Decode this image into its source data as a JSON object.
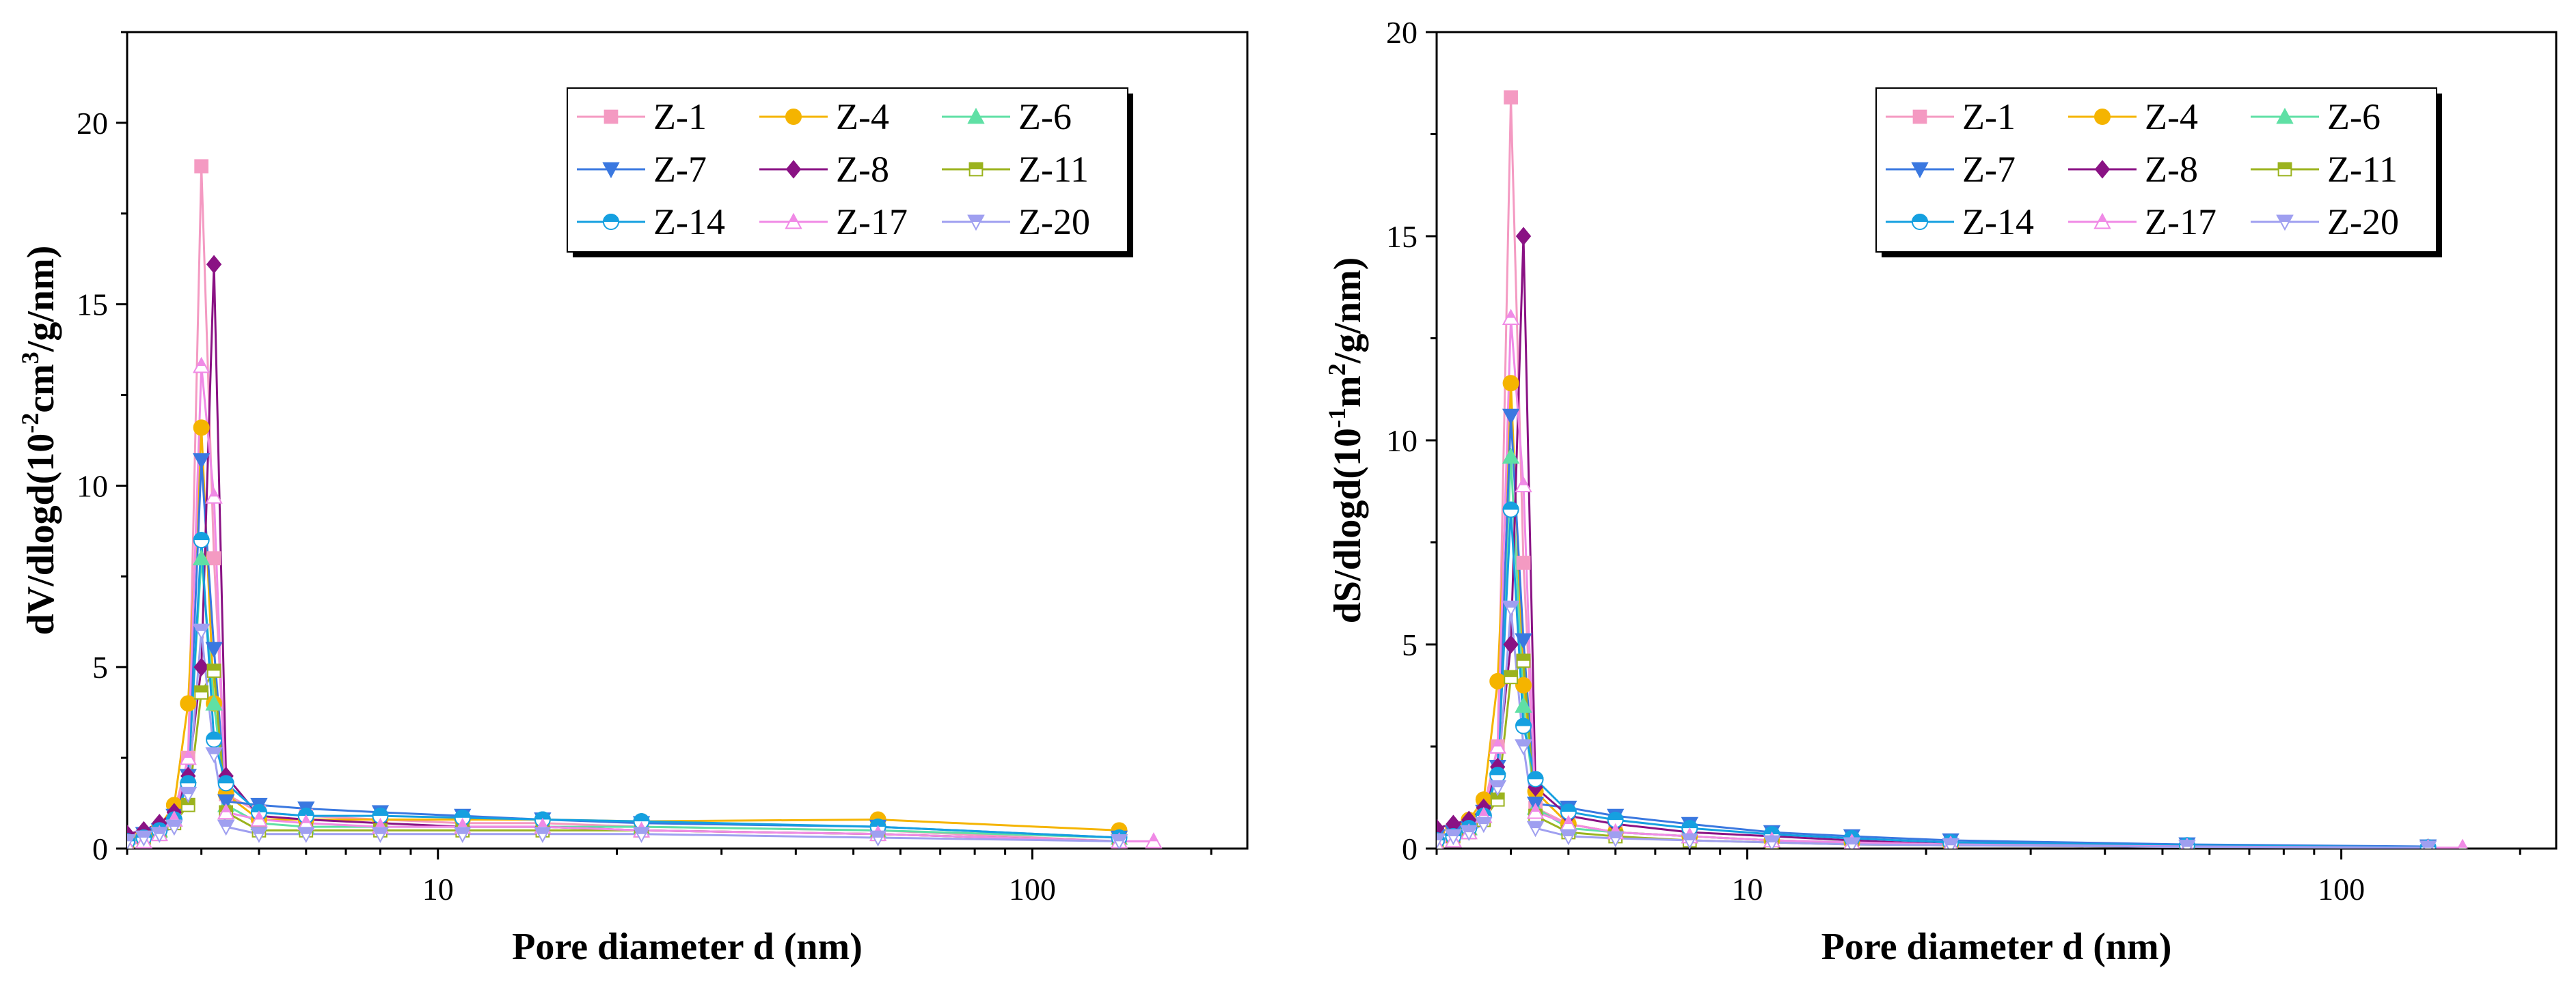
{
  "chart_data": [
    {
      "id": "left",
      "type": "line",
      "x_scale": "log",
      "xlabel": "Pore diameter d (nm)",
      "ylabel": {
        "base": "dV/dlogd(10",
        "sup1": "-2",
        "mid": "cm",
        "sup2": "3",
        "tail": "/g/nm)"
      },
      "xlim": [
        3.0,
        230
      ],
      "ylim": [
        0,
        22.5
      ],
      "xticks": [
        {
          "value": 10,
          "label": "10"
        },
        {
          "value": 100,
          "label": "100"
        }
      ],
      "yticks": [
        {
          "value": 0,
          "label": "0"
        },
        {
          "value": 5,
          "label": "5"
        },
        {
          "value": 10,
          "label": "10"
        },
        {
          "value": 15,
          "label": "15"
        },
        {
          "value": 20,
          "label": "20"
        }
      ],
      "legend_position": "top-right",
      "series": [
        {
          "name": "Z-1",
          "color": "#f49ac2",
          "marker": "square",
          "x": [
            3.0,
            3.2,
            3.4,
            3.6,
            3.8,
            4.0,
            4.2,
            4.4,
            5,
            6,
            8,
            11,
            15,
            22,
            55,
            140
          ],
          "y": [
            0.1,
            0.3,
            0.5,
            1.0,
            2.5,
            18.8,
            8.0,
            1.5,
            1.0,
            0.9,
            0.8,
            0.7,
            0.7,
            0.6,
            0.5,
            0.2
          ]
        },
        {
          "name": "Z-4",
          "color": "#f5b400",
          "marker": "circle",
          "x": [
            3.0,
            3.2,
            3.4,
            3.6,
            3.8,
            4.0,
            4.2,
            4.4,
            5,
            6,
            8,
            11,
            15,
            22,
            55,
            140
          ],
          "y": [
            0.3,
            0.4,
            0.6,
            1.2,
            4.0,
            11.6,
            4.0,
            1.5,
            0.8,
            0.8,
            0.8,
            0.8,
            0.8,
            0.75,
            0.8,
            0.5
          ]
        },
        {
          "name": "Z-6",
          "color": "#5fe0a5",
          "marker": "triangle-up",
          "x": [
            3.0,
            3.2,
            3.4,
            3.6,
            3.8,
            4.0,
            4.2,
            4.4,
            5,
            6,
            8,
            11,
            15,
            22,
            55,
            140
          ],
          "y": [
            0.3,
            0.4,
            0.5,
            0.8,
            2.0,
            8.0,
            4.0,
            1.2,
            0.7,
            0.6,
            0.6,
            0.6,
            0.6,
            0.6,
            0.5,
            0.3
          ]
        },
        {
          "name": "Z-7",
          "color": "#3a78e0",
          "marker": "triangle-down",
          "x": [
            3.0,
            3.2,
            3.4,
            3.6,
            3.8,
            4.0,
            4.2,
            4.4,
            5,
            6,
            8,
            11,
            15,
            22,
            55,
            140
          ],
          "y": [
            0.2,
            0.4,
            0.5,
            0.9,
            2.0,
            10.7,
            5.5,
            1.3,
            1.2,
            1.1,
            1.0,
            0.9,
            0.8,
            0.7,
            0.6,
            0.3
          ]
        },
        {
          "name": "Z-8",
          "color": "#8a1284",
          "marker": "diamond",
          "x": [
            3.0,
            3.2,
            3.4,
            3.6,
            3.8,
            4.0,
            4.2,
            4.4,
            5,
            6,
            8,
            11,
            15,
            22,
            55,
            140
          ],
          "y": [
            0.4,
            0.5,
            0.7,
            1.0,
            2.0,
            5.0,
            16.1,
            2.0,
            0.9,
            0.8,
            0.7,
            0.6,
            0.6,
            0.5,
            0.4,
            0.2
          ]
        },
        {
          "name": "Z-11",
          "color": "#9bb31e",
          "marker": "square-half",
          "x": [
            3.0,
            3.2,
            3.4,
            3.6,
            3.8,
            4.0,
            4.2,
            4.4,
            5,
            6,
            8,
            11,
            15,
            22,
            55,
            140
          ],
          "y": [
            0.2,
            0.3,
            0.4,
            0.7,
            1.2,
            4.3,
            4.9,
            1.0,
            0.5,
            0.5,
            0.5,
            0.5,
            0.5,
            0.5,
            0.4,
            0.2
          ]
        },
        {
          "name": "Z-14",
          "color": "#15a0e0",
          "marker": "circle-half",
          "x": [
            3.0,
            3.2,
            3.4,
            3.6,
            3.8,
            4.0,
            4.2,
            4.4,
            5,
            6,
            8,
            11,
            15,
            22,
            55,
            140
          ],
          "y": [
            0.2,
            0.3,
            0.5,
            0.8,
            1.8,
            8.5,
            3.0,
            1.8,
            1.0,
            0.9,
            0.9,
            0.85,
            0.8,
            0.75,
            0.6,
            0.3
          ]
        },
        {
          "name": "Z-17",
          "color": "#f08ae6",
          "marker": "triangle-up-half",
          "x": [
            3.0,
            3.2,
            3.4,
            3.6,
            3.8,
            4.0,
            4.2,
            4.4,
            5,
            6,
            8,
            11,
            15,
            22,
            55,
            140,
            160
          ],
          "y": [
            0.1,
            0.2,
            0.4,
            0.8,
            2.5,
            13.3,
            9.7,
            1.0,
            0.8,
            0.7,
            0.6,
            0.6,
            0.6,
            0.5,
            0.4,
            0.2,
            0.2
          ]
        },
        {
          "name": "Z-20",
          "color": "#9f9ff0",
          "marker": "triangle-down-half",
          "x": [
            3.0,
            3.2,
            3.4,
            3.6,
            3.8,
            4.0,
            4.2,
            4.4,
            5,
            6,
            8,
            11,
            15,
            22,
            55,
            140
          ],
          "y": [
            0.2,
            0.3,
            0.4,
            0.6,
            1.5,
            6.0,
            2.6,
            0.6,
            0.4,
            0.4,
            0.4,
            0.4,
            0.4,
            0.4,
            0.3,
            0.2
          ]
        }
      ]
    },
    {
      "id": "right",
      "type": "line",
      "x_scale": "log",
      "xlabel": "Pore diameter d (nm)",
      "ylabel": {
        "base": "dS/dlogd(10",
        "sup1": "-1",
        "mid": "m",
        "sup2": "2",
        "tail": "/g/nm)"
      },
      "xlim": [
        3.0,
        230
      ],
      "ylim": [
        0,
        20
      ],
      "xticks": [
        {
          "value": 10,
          "label": "10"
        },
        {
          "value": 100,
          "label": "100"
        }
      ],
      "yticks": [
        {
          "value": 0,
          "label": "0"
        },
        {
          "value": 5,
          "label": "5"
        },
        {
          "value": 10,
          "label": "10"
        },
        {
          "value": 15,
          "label": "15"
        },
        {
          "value": 20,
          "label": "20"
        }
      ],
      "legend_position": "top-right",
      "series": [
        {
          "name": "Z-1",
          "color": "#f49ac2",
          "marker": "square",
          "x": [
            3.0,
            3.2,
            3.4,
            3.6,
            3.8,
            4.0,
            4.2,
            4.4,
            5,
            6,
            8,
            11,
            15,
            22,
            55,
            140
          ],
          "y": [
            0.1,
            0.3,
            0.5,
            1.0,
            2.5,
            18.4,
            7.0,
            1.0,
            0.6,
            0.4,
            0.3,
            0.2,
            0.15,
            0.1,
            0.05,
            0.02
          ]
        },
        {
          "name": "Z-4",
          "color": "#f5b400",
          "marker": "circle",
          "x": [
            3.0,
            3.2,
            3.4,
            3.6,
            3.8,
            4.0,
            4.2,
            4.4,
            5,
            6,
            8,
            11,
            15,
            22,
            55,
            140
          ],
          "y": [
            0.4,
            0.5,
            0.7,
            1.2,
            4.1,
            11.4,
            4.0,
            1.4,
            0.6,
            0.4,
            0.3,
            0.2,
            0.15,
            0.1,
            0.05,
            0.02
          ]
        },
        {
          "name": "Z-6",
          "color": "#5fe0a5",
          "marker": "triangle-up",
          "x": [
            3.0,
            3.2,
            3.4,
            3.6,
            3.8,
            4.0,
            4.2,
            4.4,
            5,
            6,
            8,
            11,
            15,
            22,
            55,
            140
          ],
          "y": [
            0.3,
            0.4,
            0.5,
            0.8,
            2.0,
            9.6,
            3.5,
            1.0,
            0.5,
            0.4,
            0.3,
            0.2,
            0.15,
            0.1,
            0.05,
            0.02
          ]
        },
        {
          "name": "Z-7",
          "color": "#3a78e0",
          "marker": "triangle-down",
          "x": [
            3.0,
            3.2,
            3.4,
            3.6,
            3.8,
            4.0,
            4.2,
            4.4,
            5,
            6,
            8,
            11,
            15,
            22,
            55,
            140
          ],
          "y": [
            0.3,
            0.4,
            0.5,
            0.9,
            2.0,
            10.6,
            5.1,
            1.1,
            1.0,
            0.8,
            0.6,
            0.4,
            0.3,
            0.2,
            0.1,
            0.05
          ]
        },
        {
          "name": "Z-8",
          "color": "#8a1284",
          "marker": "diamond",
          "x": [
            3.0,
            3.2,
            3.4,
            3.6,
            3.8,
            4.0,
            4.2,
            4.4,
            5,
            6,
            8,
            11,
            15,
            22,
            55,
            140
          ],
          "y": [
            0.5,
            0.6,
            0.7,
            1.0,
            2.0,
            5.0,
            15.0,
            1.5,
            0.8,
            0.6,
            0.4,
            0.3,
            0.2,
            0.1,
            0.05,
            0.02
          ]
        },
        {
          "name": "Z-11",
          "color": "#9bb31e",
          "marker": "square-half",
          "x": [
            3.0,
            3.2,
            3.4,
            3.6,
            3.8,
            4.0,
            4.2,
            4.4,
            5,
            6,
            8,
            11,
            15,
            22,
            55,
            140
          ],
          "y": [
            0.2,
            0.3,
            0.4,
            0.7,
            1.2,
            4.2,
            4.6,
            0.8,
            0.4,
            0.3,
            0.2,
            0.15,
            0.1,
            0.08,
            0.04,
            0.02
          ]
        },
        {
          "name": "Z-14",
          "color": "#15a0e0",
          "marker": "circle-half",
          "x": [
            3.0,
            3.2,
            3.4,
            3.6,
            3.8,
            4.0,
            4.2,
            4.4,
            5,
            6,
            8,
            11,
            15,
            22,
            55,
            140
          ],
          "y": [
            0.2,
            0.3,
            0.5,
            0.8,
            1.8,
            8.3,
            3.0,
            1.7,
            0.9,
            0.7,
            0.5,
            0.35,
            0.25,
            0.15,
            0.08,
            0.03
          ]
        },
        {
          "name": "Z-17",
          "color": "#f08ae6",
          "marker": "triangle-up-half",
          "x": [
            3.0,
            3.2,
            3.4,
            3.6,
            3.8,
            4.0,
            4.2,
            4.4,
            5,
            6,
            8,
            11,
            15,
            22,
            55,
            140,
            160
          ],
          "y": [
            0.1,
            0.2,
            0.4,
            0.8,
            2.5,
            13.0,
            8.9,
            0.9,
            0.6,
            0.4,
            0.3,
            0.2,
            0.15,
            0.1,
            0.05,
            0.02,
            0.02
          ]
        },
        {
          "name": "Z-20",
          "color": "#9f9ff0",
          "marker": "triangle-down-half",
          "x": [
            3.0,
            3.2,
            3.4,
            3.6,
            3.8,
            4.0,
            4.2,
            4.4,
            5,
            6,
            8,
            11,
            15,
            22,
            55,
            140
          ],
          "y": [
            0.2,
            0.3,
            0.4,
            0.6,
            1.5,
            5.9,
            2.5,
            0.5,
            0.3,
            0.25,
            0.2,
            0.15,
            0.1,
            0.08,
            0.04,
            0.02
          ]
        }
      ]
    }
  ]
}
